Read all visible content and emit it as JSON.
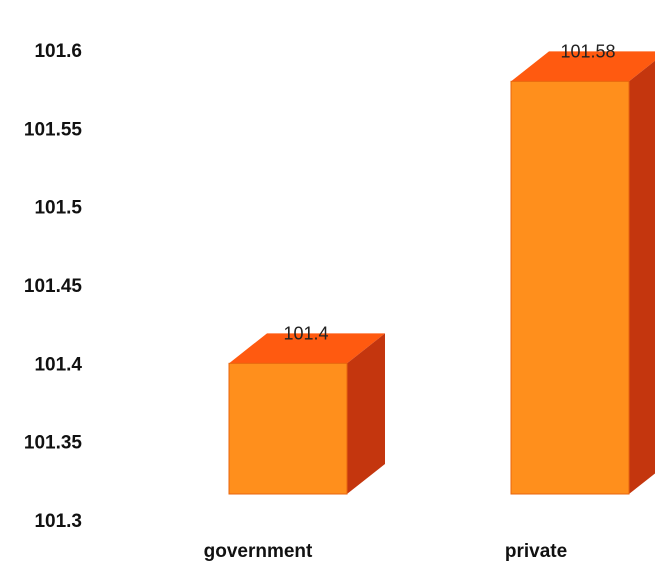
{
  "chart_data": {
    "type": "bar",
    "title": "",
    "xlabel": "",
    "ylabel": "",
    "categories": [
      "government",
      "private"
    ],
    "values": [
      101.4,
      101.58
    ],
    "data_labels": [
      "101.4",
      "101.58"
    ],
    "y_ticks": [
      "101.3",
      "101.35",
      "101.4",
      "101.45",
      "101.5",
      "101.55",
      "101.6"
    ],
    "ylim": [
      101.3,
      101.6
    ],
    "grid": false,
    "legend": "none",
    "style": "3d-column",
    "colors": {
      "front": "#ff8f1c",
      "top": "#ff5a10",
      "side": "#c4360e"
    }
  }
}
